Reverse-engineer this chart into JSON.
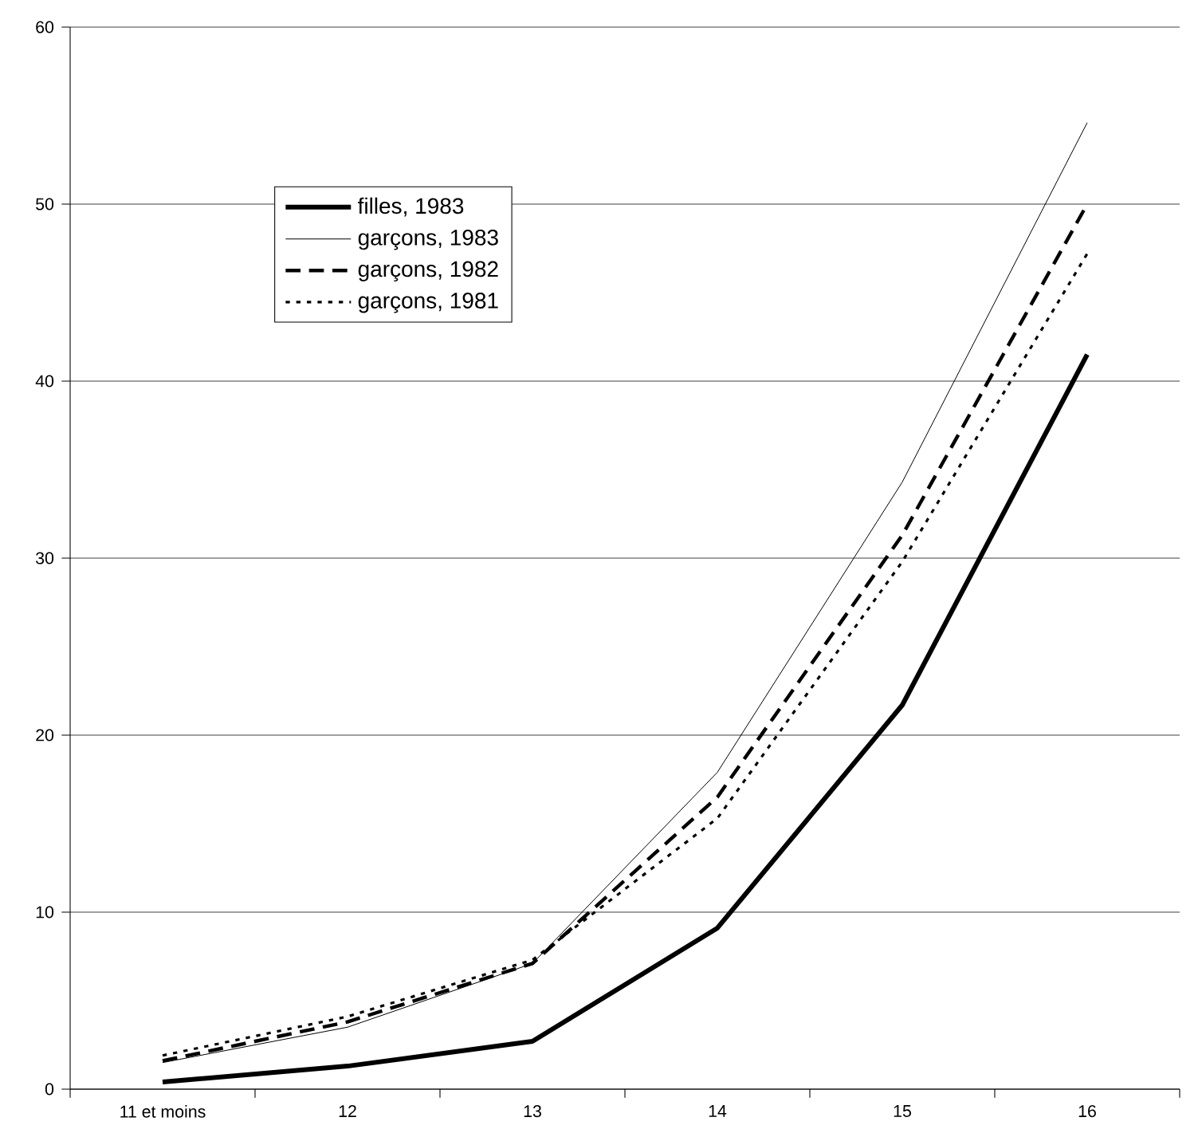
{
  "chart_data": {
    "type": "line",
    "categories": [
      "11 et moins",
      "12",
      "13",
      "14",
      "15",
      "16"
    ],
    "series": [
      {
        "name": "filles, 1983",
        "color": "#000000",
        "line_style": "solid",
        "values": [
          0.4,
          1.3,
          2.7,
          9.1,
          21.7,
          41.5
        ]
      },
      {
        "name": "garçons, 1983",
        "color": "#000000",
        "line_style": "solid",
        "values": [
          1.5,
          3.5,
          7.1,
          17.9,
          34.3,
          54.6
        ]
      },
      {
        "name": "garçons, 1982",
        "color": "#000000",
        "line_style": "dashed",
        "values": [
          1.6,
          3.8,
          7.1,
          16.5,
          31.3,
          50.0
        ]
      },
      {
        "name": "garçons, 1981",
        "color": "#000000",
        "line_style": "dotted",
        "values": [
          1.9,
          4.1,
          7.3,
          15.3,
          29.8,
          47.2
        ]
      }
    ],
    "ylim": [
      0,
      60
    ],
    "yticks": [
      0,
      10,
      20,
      30,
      40,
      50,
      60
    ],
    "grid": "y",
    "legend": "top left",
    "marker": "none"
  }
}
